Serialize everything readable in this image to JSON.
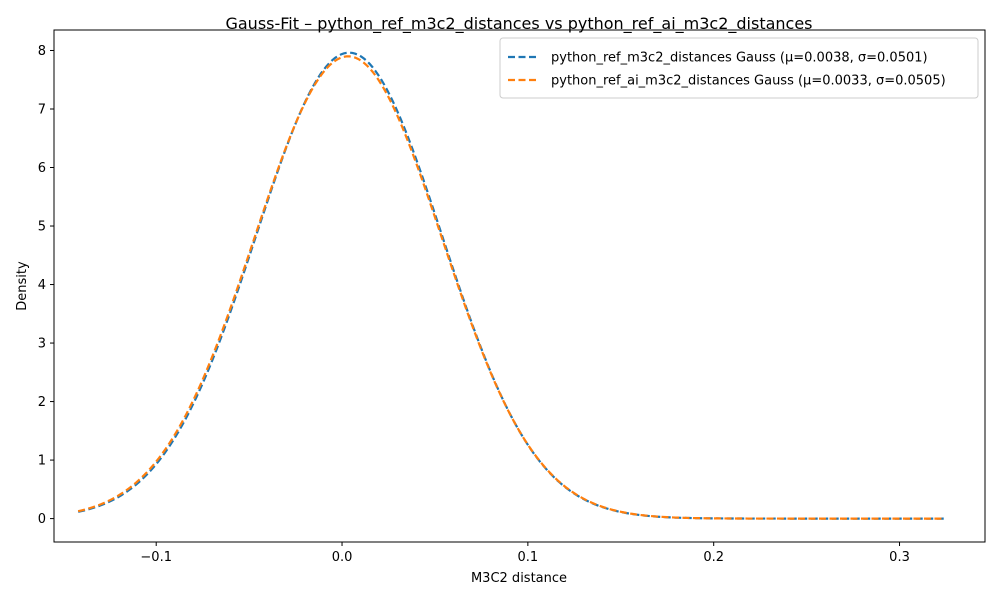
{
  "chart_data": {
    "type": "line",
    "title": "Gauss-Fit – python_ref_m3c2_distances vs python_ref_ai_m3c2_distances",
    "xlabel": "M3C2 distance",
    "ylabel": "Density",
    "xlim": [
      -0.155,
      0.346
    ],
    "ylim": [
      -0.4,
      8.35
    ],
    "x_ticks": [
      -0.1,
      0.0,
      0.1,
      0.2,
      0.3
    ],
    "x_tick_labels": [
      "−0.1",
      "0.0",
      "0.1",
      "0.2",
      "0.3"
    ],
    "y_ticks": [
      0,
      1,
      2,
      3,
      4,
      5,
      6,
      7,
      8
    ],
    "y_tick_labels": [
      "0",
      "1",
      "2",
      "3",
      "4",
      "5",
      "6",
      "7",
      "8"
    ],
    "x_range": [
      -0.142,
      0.324
    ],
    "grid": false,
    "legend_position": "top-right",
    "series": [
      {
        "name": "python_ref_m3c2_distances Gauss (μ=0.0038, σ=0.0501)",
        "color": "#1f77b4",
        "mu": 0.0038,
        "sigma": 0.0501,
        "x": [
          -0.142,
          -0.12,
          -0.1,
          -0.08,
          -0.06,
          -0.04,
          -0.02,
          0.0,
          0.0038,
          0.02,
          0.04,
          0.06,
          0.08,
          0.1,
          0.12,
          0.14,
          0.16,
          0.18,
          0.2,
          0.25,
          0.3,
          0.324
        ],
        "y": [
          0.11,
          0.37,
          0.93,
          1.98,
          3.55,
          5.44,
          7.13,
          7.94,
          7.96,
          7.54,
          6.18,
          4.33,
          2.6,
          1.33,
          0.58,
          0.22,
          0.07,
          0.02,
          0.0,
          0.0,
          0.0,
          0.0
        ]
      },
      {
        "name": "python_ref_ai_m3c2_distances Gauss (μ=0.0033, σ=0.0505)",
        "color": "#ff7f0e",
        "mu": 0.0033,
        "sigma": 0.0505,
        "x": [
          -0.142,
          -0.12,
          -0.1,
          -0.08,
          -0.06,
          -0.04,
          -0.02,
          0.0,
          0.0033,
          0.02,
          0.04,
          0.06,
          0.08,
          0.1,
          0.12,
          0.14,
          0.16,
          0.18,
          0.2,
          0.25,
          0.3,
          0.324
        ],
        "y": [
          0.12,
          0.39,
          0.97,
          2.03,
          3.6,
          5.47,
          7.13,
          7.88,
          7.9,
          7.48,
          6.14,
          4.31,
          2.6,
          1.34,
          0.59,
          0.23,
          0.08,
          0.02,
          0.0,
          0.0,
          0.0,
          0.0
        ]
      }
    ]
  }
}
